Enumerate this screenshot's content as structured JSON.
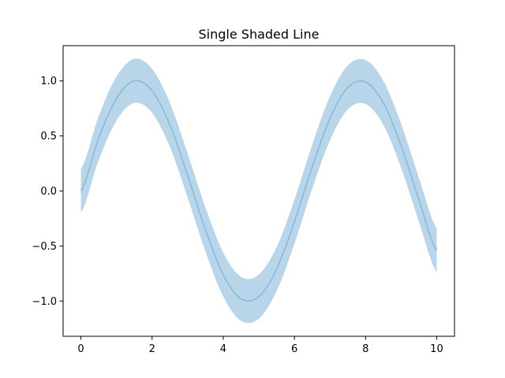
{
  "chart_data": {
    "type": "line",
    "title": "Single Shaded Line",
    "xlabel": "",
    "ylabel": "",
    "xlim": [
      -0.5,
      10.5
    ],
    "ylim": [
      -1.32,
      1.32
    ],
    "x_ticks": [
      0,
      2,
      4,
      6,
      8,
      10
    ],
    "x_tick_labels": [
      "0",
      "2",
      "4",
      "6",
      "8",
      "10"
    ],
    "y_ticks": [
      -1.0,
      -0.5,
      0.0,
      0.5,
      1.0
    ],
    "y_tick_labels": [
      "−1.0",
      "−0.5",
      "0.0",
      "0.5",
      "1.0"
    ],
    "grid": false,
    "legend": "none",
    "series": [
      {
        "x": [
          0,
          0.5,
          1,
          1.5,
          2,
          2.5,
          3,
          3.5,
          4,
          4.5,
          5,
          5.5,
          6,
          6.5,
          7,
          7.5,
          8,
          8.5,
          9,
          9.5,
          10
        ],
        "y": [
          0.0,
          0.48,
          0.84,
          1.0,
          0.91,
          0.6,
          0.14,
          -0.35,
          -0.76,
          -0.98,
          -0.96,
          -0.71,
          -0.28,
          0.22,
          0.66,
          0.94,
          0.99,
          0.8,
          0.41,
          -0.08,
          -0.54
        ],
        "band_lower": [
          -0.2,
          0.28,
          0.64,
          0.8,
          0.71,
          0.4,
          -0.06,
          -0.55,
          -0.96,
          -1.18,
          -1.16,
          -0.91,
          -0.48,
          0.02,
          0.46,
          0.74,
          0.79,
          0.6,
          0.21,
          -0.28,
          -0.74
        ],
        "band_upper": [
          0.2,
          0.68,
          1.04,
          1.2,
          1.11,
          0.8,
          0.34,
          -0.15,
          -0.56,
          -0.78,
          -0.76,
          -0.51,
          -0.08,
          0.42,
          0.86,
          1.14,
          1.19,
          1.0,
          0.61,
          0.12,
          -0.34
        ]
      }
    ],
    "colors": {
      "line": "#8cb9d9",
      "band": "#b8d5e9",
      "axes": "#000000"
    }
  }
}
